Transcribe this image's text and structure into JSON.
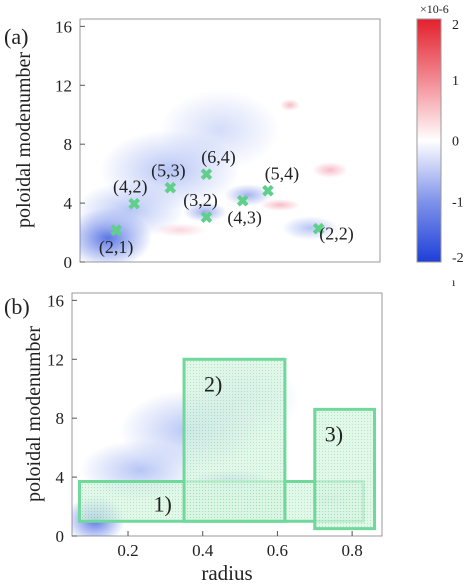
{
  "figure": {
    "panel_a": {
      "label": "(a)",
      "ylabel": "poloidal modenumber",
      "yticks": [
        "0",
        "4",
        "8",
        "12",
        "16"
      ],
      "colorbar": {
        "multiplier": "×10-6",
        "ticks": [
          "2",
          "1",
          "0",
          "-1",
          "-2"
        ],
        "bottom_mark": "ı",
        "colors": {
          "top": "#e2202c",
          "mid": "#ffffff",
          "bottom": "#1e3fd8"
        }
      },
      "marker_color": "#5fd08a"
    },
    "panel_b": {
      "label": "(b)",
      "ylabel": "poloidal modenumber",
      "xlabel": "radius",
      "xticks": [
        "0.2",
        "0.4",
        "0.6",
        "0.8"
      ],
      "yticks": [
        "0",
        "4",
        "8",
        "12",
        "16"
      ],
      "box_color": "#6fd89a"
    }
  },
  "chart_data": [
    {
      "type": "heatmap",
      "title": "",
      "xlabel": "",
      "ylabel": "poloidal modenumber",
      "xlim": [
        0.05,
        0.88
      ],
      "ylim": [
        0,
        16.5
      ],
      "colorbar_range": [
        -2e-06,
        2e-06
      ],
      "modes": [
        {
          "label": "(2,1)",
          "x": 0.15,
          "y": 2.1
        },
        {
          "label": "(4,2)",
          "x": 0.2,
          "y": 3.9
        },
        {
          "label": "(5,3)",
          "x": 0.3,
          "y": 5.0
        },
        {
          "label": "(6,4)",
          "x": 0.4,
          "y": 5.9
        },
        {
          "label": "(3,2)",
          "x": 0.4,
          "y": 3.0
        },
        {
          "label": "(4,3)",
          "x": 0.5,
          "y": 4.1
        },
        {
          "label": "(5,4)",
          "x": 0.57,
          "y": 4.8
        },
        {
          "label": "(2,2)",
          "x": 0.71,
          "y": 2.2
        }
      ]
    },
    {
      "type": "heatmap",
      "title": "",
      "xlabel": "radius",
      "ylabel": "poloidal modenumber",
      "xlim": [
        0.05,
        0.88
      ],
      "ylim": [
        0,
        16.5
      ],
      "regions": [
        {
          "label": "1)",
          "x": [
            0.07,
            0.83
          ],
          "y": [
            1.0,
            3.7
          ]
        },
        {
          "label": "2)",
          "x": [
            0.35,
            0.62
          ],
          "y": [
            1.0,
            12.0
          ]
        },
        {
          "label": "3)",
          "x": [
            0.7,
            0.86
          ],
          "y": [
            0.5,
            8.6
          ]
        }
      ]
    }
  ]
}
